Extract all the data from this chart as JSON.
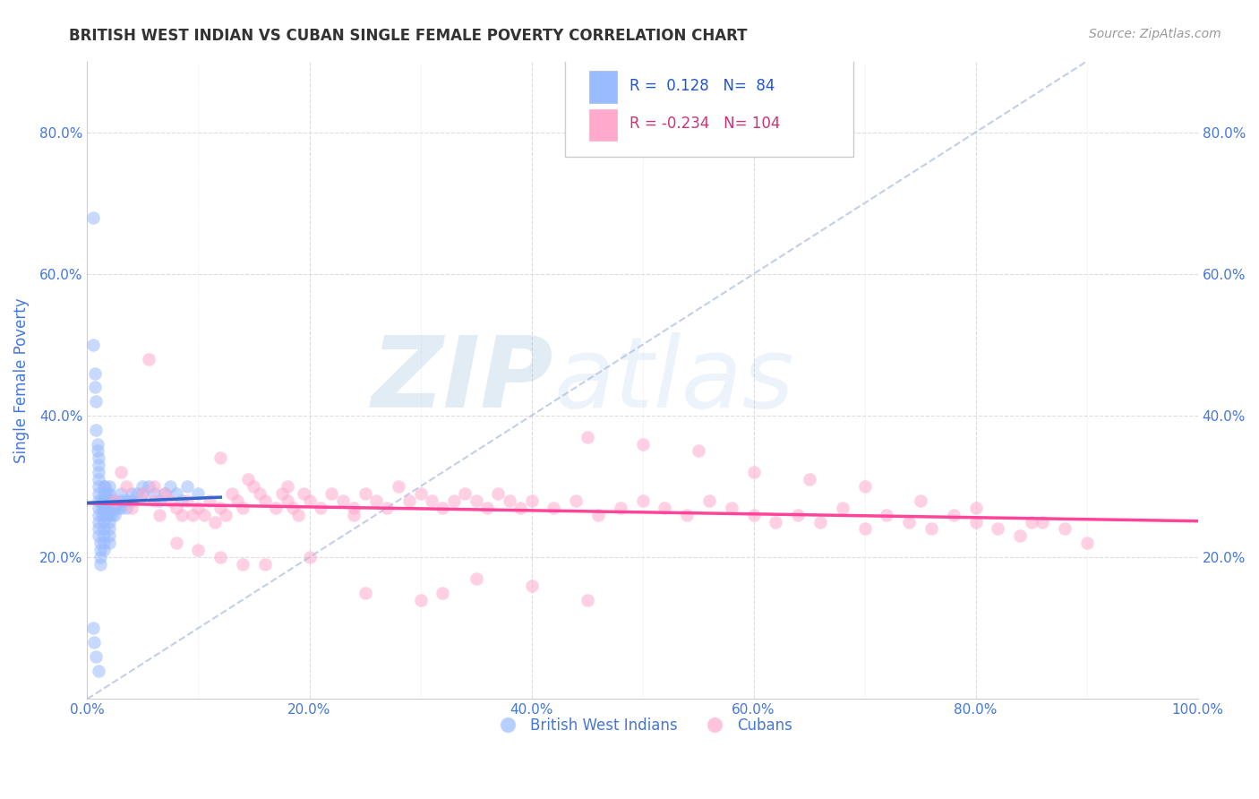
{
  "title": "BRITISH WEST INDIAN VS CUBAN SINGLE FEMALE POVERTY CORRELATION CHART",
  "source": "Source: ZipAtlas.com",
  "ylabel": "Single Female Poverty",
  "xmin": 0.0,
  "xmax": 1.0,
  "ymin": 0.0,
  "ymax": 0.9,
  "yticks": [
    0.0,
    0.2,
    0.4,
    0.6,
    0.8
  ],
  "xticks": [
    0.0,
    0.2,
    0.4,
    0.6,
    0.8,
    1.0
  ],
  "blue_R": 0.128,
  "blue_N": 84,
  "pink_R": -0.234,
  "pink_N": 104,
  "blue_color": "#99bbff",
  "pink_color": "#ffaacc",
  "blue_line_color": "#3366cc",
  "pink_line_color": "#ff4499",
  "watermark_zip": "ZIP",
  "watermark_atlas": "atlas",
  "legend_label_blue": "British West Indians",
  "legend_label_pink": "Cubans",
  "background_color": "#ffffff",
  "grid_color": "#dddddd",
  "title_color": "#333333",
  "axis_label_color": "#4477dd",
  "tick_color": "#4477dd",
  "legend_text_blue": "#2255cc",
  "legend_text_pink": "#cc3377",
  "blue_scatter_x": [
    0.005,
    0.005,
    0.007,
    0.007,
    0.008,
    0.008,
    0.009,
    0.009,
    0.01,
    0.01,
    0.01,
    0.01,
    0.01,
    0.01,
    0.01,
    0.01,
    0.01,
    0.01,
    0.01,
    0.01,
    0.012,
    0.012,
    0.012,
    0.012,
    0.013,
    0.013,
    0.013,
    0.015,
    0.015,
    0.015,
    0.015,
    0.015,
    0.015,
    0.015,
    0.015,
    0.015,
    0.015,
    0.016,
    0.016,
    0.016,
    0.018,
    0.018,
    0.018,
    0.018,
    0.02,
    0.02,
    0.02,
    0.02,
    0.02,
    0.02,
    0.02,
    0.02,
    0.02,
    0.022,
    0.022,
    0.022,
    0.024,
    0.025,
    0.025,
    0.025,
    0.028,
    0.03,
    0.03,
    0.03,
    0.035,
    0.035,
    0.04,
    0.04,
    0.045,
    0.05,
    0.05,
    0.055,
    0.06,
    0.065,
    0.07,
    0.075,
    0.08,
    0.085,
    0.09,
    0.1,
    0.005,
    0.006,
    0.008,
    0.01
  ],
  "blue_scatter_y": [
    0.68,
    0.5,
    0.46,
    0.44,
    0.42,
    0.38,
    0.36,
    0.35,
    0.34,
    0.33,
    0.32,
    0.31,
    0.3,
    0.29,
    0.28,
    0.27,
    0.26,
    0.25,
    0.24,
    0.23,
    0.22,
    0.21,
    0.2,
    0.19,
    0.28,
    0.27,
    0.26,
    0.3,
    0.29,
    0.28,
    0.27,
    0.26,
    0.25,
    0.24,
    0.23,
    0.22,
    0.21,
    0.3,
    0.29,
    0.27,
    0.29,
    0.28,
    0.27,
    0.26,
    0.3,
    0.29,
    0.28,
    0.27,
    0.26,
    0.25,
    0.24,
    0.23,
    0.22,
    0.28,
    0.27,
    0.26,
    0.27,
    0.28,
    0.27,
    0.26,
    0.27,
    0.29,
    0.28,
    0.27,
    0.28,
    0.27,
    0.29,
    0.28,
    0.29,
    0.3,
    0.29,
    0.3,
    0.29,
    0.28,
    0.29,
    0.3,
    0.29,
    0.28,
    0.3,
    0.29,
    0.1,
    0.08,
    0.06,
    0.04
  ],
  "pink_scatter_x": [
    0.025,
    0.03,
    0.035,
    0.04,
    0.05,
    0.055,
    0.06,
    0.065,
    0.07,
    0.075,
    0.08,
    0.085,
    0.09,
    0.095,
    0.1,
    0.105,
    0.11,
    0.115,
    0.12,
    0.125,
    0.13,
    0.135,
    0.14,
    0.145,
    0.15,
    0.155,
    0.16,
    0.17,
    0.175,
    0.18,
    0.185,
    0.19,
    0.195,
    0.2,
    0.21,
    0.22,
    0.23,
    0.24,
    0.25,
    0.26,
    0.27,
    0.28,
    0.29,
    0.3,
    0.31,
    0.32,
    0.33,
    0.34,
    0.35,
    0.36,
    0.37,
    0.38,
    0.39,
    0.4,
    0.42,
    0.44,
    0.46,
    0.48,
    0.5,
    0.52,
    0.54,
    0.56,
    0.58,
    0.6,
    0.62,
    0.64,
    0.66,
    0.68,
    0.7,
    0.72,
    0.74,
    0.76,
    0.78,
    0.8,
    0.82,
    0.84,
    0.86,
    0.88,
    0.9,
    0.06,
    0.08,
    0.1,
    0.12,
    0.14,
    0.16,
    0.2,
    0.25,
    0.3,
    0.35,
    0.4,
    0.45,
    0.5,
    0.55,
    0.6,
    0.65,
    0.7,
    0.75,
    0.8,
    0.85,
    0.12,
    0.18,
    0.24,
    0.32,
    0.45
  ],
  "pink_scatter_y": [
    0.28,
    0.32,
    0.3,
    0.27,
    0.29,
    0.48,
    0.28,
    0.26,
    0.29,
    0.28,
    0.27,
    0.26,
    0.28,
    0.26,
    0.27,
    0.26,
    0.28,
    0.25,
    0.27,
    0.26,
    0.29,
    0.28,
    0.27,
    0.31,
    0.3,
    0.29,
    0.28,
    0.27,
    0.29,
    0.28,
    0.27,
    0.26,
    0.29,
    0.28,
    0.27,
    0.29,
    0.28,
    0.27,
    0.29,
    0.28,
    0.27,
    0.3,
    0.28,
    0.29,
    0.28,
    0.27,
    0.28,
    0.29,
    0.28,
    0.27,
    0.29,
    0.28,
    0.27,
    0.28,
    0.27,
    0.28,
    0.26,
    0.27,
    0.28,
    0.27,
    0.26,
    0.28,
    0.27,
    0.26,
    0.25,
    0.26,
    0.25,
    0.27,
    0.24,
    0.26,
    0.25,
    0.24,
    0.26,
    0.25,
    0.24,
    0.23,
    0.25,
    0.24,
    0.22,
    0.3,
    0.22,
    0.21,
    0.2,
    0.19,
    0.19,
    0.2,
    0.15,
    0.14,
    0.17,
    0.16,
    0.37,
    0.36,
    0.35,
    0.32,
    0.31,
    0.3,
    0.28,
    0.27,
    0.25,
    0.34,
    0.3,
    0.26,
    0.15,
    0.14
  ]
}
